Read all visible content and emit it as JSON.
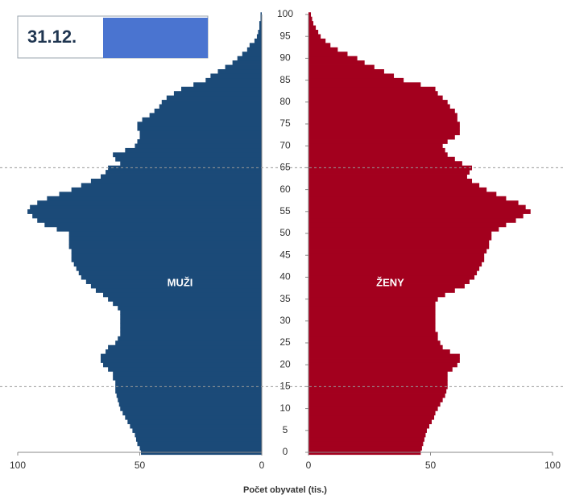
{
  "chart_data": {
    "type": "pyramid",
    "title": "31.12.",
    "xlabel": "Počet obyvatel (tis.)",
    "xlim": [
      0,
      100
    ],
    "xticks": [
      0,
      50,
      100
    ],
    "ylim": [
      0,
      100
    ],
    "yticks": [
      0,
      5,
      10,
      15,
      20,
      25,
      30,
      35,
      40,
      45,
      50,
      55,
      60,
      65,
      70,
      75,
      80,
      85,
      90,
      95,
      100
    ],
    "hlines": [
      15,
      65
    ],
    "series": [
      {
        "name": "MUŽI",
        "color": "#1b4a78",
        "side": "left",
        "values": [
          49.5,
          50,
          51,
          51.5,
          52,
          53,
          54,
          55,
          56,
          57,
          58,
          58.5,
          59,
          59.5,
          60,
          60,
          60,
          61,
          61,
          63,
          65,
          66,
          66,
          64,
          63,
          60,
          59,
          58,
          58,
          58,
          58,
          58,
          58,
          59,
          61,
          63,
          65,
          68,
          70,
          72,
          74,
          75,
          76,
          77,
          78,
          78,
          78,
          79,
          79,
          79,
          79,
          84,
          89,
          92,
          94,
          96,
          95,
          92,
          88,
          83,
          78,
          74,
          70,
          66,
          64,
          63,
          58,
          60,
          61,
          56,
          52,
          51,
          50,
          50,
          51,
          51,
          49,
          46,
          44,
          42,
          41,
          39,
          36,
          33,
          28,
          23,
          21,
          18,
          15,
          12,
          10,
          8,
          6,
          5,
          3,
          2,
          1.5,
          1,
          1,
          0.5,
          0.5
        ]
      },
      {
        "name": "ŽENY",
        "color": "#a3001e",
        "side": "right",
        "values": [
          46,
          46.5,
          47,
          47.5,
          48,
          48.5,
          49.5,
          50.5,
          51.5,
          52,
          53,
          54,
          55,
          56,
          56.5,
          57,
          57,
          57,
          57,
          59,
          61,
          62,
          62,
          58,
          55,
          54,
          53,
          53,
          52,
          52,
          52,
          52,
          52,
          52,
          52,
          53,
          56,
          60,
          64,
          66,
          68,
          69,
          70,
          71,
          72,
          72,
          73,
          74,
          74,
          75,
          75,
          78,
          81,
          85,
          88,
          91,
          89,
          86,
          81,
          77,
          73,
          70,
          67,
          65,
          66,
          67,
          63,
          60,
          57,
          56,
          55,
          57,
          60,
          62,
          62,
          62,
          61,
          61,
          60,
          58,
          57,
          55,
          53,
          52,
          46,
          39,
          35,
          31,
          27,
          23,
          20,
          16,
          12,
          9,
          7,
          5,
          4,
          3,
          2,
          1.5,
          1
        ]
      }
    ]
  }
}
